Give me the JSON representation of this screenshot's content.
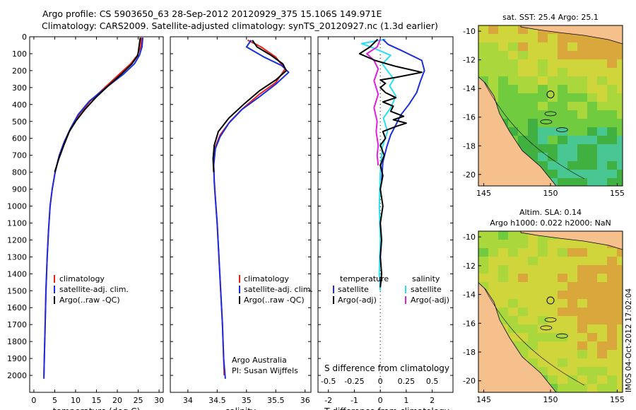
{
  "header": {
    "line1": "Argo profile: CS 5903650_63 28-Sep-2012 20120929_375 15.106S 149.971E",
    "line2": "Climatology: CARS2009. Satellite-adjusted climatology: synTS_20120927.nc (1.3d earlier)"
  },
  "colors": {
    "clim": "#e8201c",
    "sat": "#1a2ee0",
    "argo": "#000000",
    "sat_s": "#27e0f0",
    "argo_s": "#e020e0",
    "land": "#f5c08c",
    "shelf": "#3aa832"
  },
  "chart_data": [
    {
      "id": "temperature",
      "type": "line",
      "xlabel": "temperature (deg C)",
      "xlim": [
        -1,
        31
      ],
      "xticks": [
        "0",
        "5",
        "10",
        "15",
        "20",
        "25",
        "30"
      ],
      "ylim": [
        0,
        2100
      ],
      "yticks": [
        "0",
        "100",
        "200",
        "300",
        "400",
        "500",
        "600",
        "700",
        "800",
        "900",
        "1000",
        "1100",
        "1200",
        "1300",
        "1400",
        "1500",
        "1600",
        "1700",
        "1800",
        "1900",
        "2000"
      ],
      "legend": [
        "climatology",
        "satellite-adj. clim.",
        "Argo(..raw -QC)"
      ],
      "series": [
        {
          "name": "climatology",
          "color": "#e8201c",
          "points": [
            [
              25.8,
              5
            ],
            [
              25.6,
              60
            ],
            [
              24.8,
              110
            ],
            [
              23.2,
              160
            ],
            [
              20.5,
              220
            ],
            [
              17,
              300
            ],
            [
              13.5,
              380
            ],
            [
              10.8,
              460
            ],
            [
              8.9,
              540
            ],
            [
              7.3,
              620
            ],
            [
              6.1,
              700
            ],
            [
              5.1,
              800
            ],
            [
              4.4,
              900
            ],
            [
              3.9,
              1000
            ],
            [
              3.5,
              1150
            ],
            [
              3.2,
              1300
            ],
            [
              2.9,
              1500
            ],
            [
              2.7,
              1700
            ],
            [
              2.5,
              1900
            ],
            [
              2.4,
              2000
            ]
          ]
        },
        {
          "name": "satellite-adj. clim.",
          "color": "#1a2ee0",
          "points": [
            [
              26.1,
              5
            ],
            [
              25.9,
              60
            ],
            [
              25.3,
              110
            ],
            [
              24.1,
              160
            ],
            [
              21.5,
              220
            ],
            [
              17.3,
              300
            ],
            [
              13.3,
              380
            ],
            [
              10.6,
              460
            ],
            [
              8.8,
              540
            ],
            [
              7.3,
              620
            ],
            [
              6.1,
              700
            ],
            [
              5.1,
              800
            ],
            [
              4.4,
              900
            ],
            [
              3.9,
              1000
            ],
            [
              3.5,
              1150
            ],
            [
              3.2,
              1300
            ],
            [
              2.9,
              1500
            ],
            [
              2.7,
              1700
            ],
            [
              2.5,
              1900
            ],
            [
              2.4,
              2020
            ]
          ]
        },
        {
          "name": "Argo(..raw -QC)",
          "color": "#000000",
          "points": [
            [
              25.5,
              5
            ],
            [
              25.2,
              60
            ],
            [
              24.9,
              110
            ],
            [
              23.5,
              160
            ],
            [
              21,
              220
            ],
            [
              17.8,
              290
            ],
            [
              14.8,
              360
            ],
            [
              12.2,
              430
            ],
            [
              10,
              500
            ],
            [
              8.5,
              560
            ],
            [
              7.2,
              640
            ],
            [
              6,
              720
            ],
            [
              5,
              800
            ]
          ]
        }
      ]
    },
    {
      "id": "salinity",
      "type": "line",
      "xlabel": "salinity",
      "xlim": [
        33.7,
        36.1
      ],
      "xticks": [
        "34",
        "34.5",
        "35",
        "35.5",
        "36"
      ],
      "ylim": [
        0,
        2100
      ],
      "legend": [
        "climatology",
        "satellite-adj. clim.",
        "Argo(..raw -QC)"
      ],
      "annotation": [
        "Argo Australia",
        "PI: Susan Wijffels"
      ],
      "series": [
        {
          "name": "climatology",
          "color": "#e8201c",
          "points": [
            [
              35.02,
              20
            ],
            [
              35.25,
              60
            ],
            [
              35.5,
              120
            ],
            [
              35.66,
              190
            ],
            [
              35.5,
              270
            ],
            [
              35.22,
              340
            ],
            [
              34.95,
              420
            ],
            [
              34.72,
              500
            ],
            [
              34.55,
              580
            ],
            [
              34.47,
              650
            ],
            [
              34.44,
              750
            ],
            [
              34.45,
              850
            ],
            [
              34.47,
              950
            ],
            [
              34.5,
              1100
            ],
            [
              34.53,
              1300
            ],
            [
              34.56,
              1500
            ],
            [
              34.59,
              1700
            ],
            [
              34.61,
              1900
            ],
            [
              34.62,
              2000
            ]
          ]
        },
        {
          "name": "satellite-adj. clim.",
          "color": "#1a2ee0",
          "points": [
            [
              35.08,
              20
            ],
            [
              35.0,
              60
            ],
            [
              35.3,
              120
            ],
            [
              35.6,
              170
            ],
            [
              35.72,
              210
            ],
            [
              35.5,
              280
            ],
            [
              35.2,
              360
            ],
            [
              34.92,
              430
            ],
            [
              34.7,
              510
            ],
            [
              34.55,
              590
            ],
            [
              34.47,
              660
            ],
            [
              34.44,
              760
            ],
            [
              34.45,
              860
            ],
            [
              34.47,
              960
            ],
            [
              34.5,
              1100
            ],
            [
              34.53,
              1300
            ],
            [
              34.56,
              1500
            ],
            [
              34.59,
              1700
            ],
            [
              34.61,
              1900
            ],
            [
              34.64,
              2020
            ]
          ]
        },
        {
          "name": "Argo(..raw -QC)",
          "color": "#000000",
          "points": [
            [
              35.1,
              20
            ],
            [
              35.18,
              60
            ],
            [
              35.42,
              110
            ],
            [
              35.62,
              160
            ],
            [
              35.68,
              200
            ],
            [
              35.5,
              255
            ],
            [
              35.22,
              320
            ],
            [
              34.95,
              400
            ],
            [
              34.7,
              480
            ],
            [
              34.52,
              560
            ],
            [
              34.45,
              640
            ],
            [
              34.43,
              720
            ],
            [
              34.44,
              800
            ]
          ]
        }
      ]
    },
    {
      "id": "difference",
      "type": "line",
      "xlabel": "T difference from climatology",
      "xlabel_top": "S difference from climatology",
      "xlim": [
        -2.4,
        2.8
      ],
      "xticks_t": [
        "-2",
        "-1",
        "0",
        "1",
        "2"
      ],
      "xticks_s": [
        "-0.5",
        "-0.25",
        "0",
        "0.25",
        "0.5"
      ],
      "ylim": [
        0,
        2100
      ],
      "legend_t": [
        "temperature",
        "satellite",
        "Argo(-adj)"
      ],
      "legend_s": [
        "salinity",
        "satellite",
        "Argo(-adj)"
      ],
      "series": [
        {
          "name": "T satellite",
          "color": "#1a2ee0",
          "points": [
            [
              0.1,
              15
            ],
            [
              0.3,
              45
            ],
            [
              0.8,
              80
            ],
            [
              1.6,
              140
            ],
            [
              1.7,
              200
            ],
            [
              1.55,
              260
            ],
            [
              1.4,
              330
            ],
            [
              1.1,
              400
            ],
            [
              0.8,
              460
            ],
            [
              0.6,
              520
            ],
            [
              0.4,
              580
            ],
            [
              0.25,
              650
            ],
            [
              0.1,
              740
            ],
            [
              0.05,
              850
            ]
          ]
        },
        {
          "name": "T Argo(-adj)",
          "color": "#000000",
          "points": [
            [
              -0.1,
              15
            ],
            [
              -0.4,
              60
            ],
            [
              -0.8,
              100
            ],
            [
              -0.2,
              140
            ],
            [
              0.6,
              175
            ],
            [
              1.6,
              210
            ],
            [
              0.6,
              240
            ],
            [
              0,
              255
            ],
            [
              0.2,
              275
            ],
            [
              0,
              300
            ],
            [
              0.2,
              330
            ],
            [
              0.6,
              360
            ],
            [
              0.1,
              385
            ],
            [
              0.5,
              410
            ],
            [
              0.4,
              440
            ],
            [
              0.9,
              470
            ],
            [
              0.5,
              490
            ],
            [
              1.0,
              510
            ],
            [
              0.6,
              530
            ],
            [
              0.1,
              560
            ],
            [
              0.2,
              600
            ],
            [
              0,
              640
            ],
            [
              0.15,
              700
            ],
            [
              0,
              760
            ],
            [
              0.1,
              820
            ],
            [
              0,
              900
            ],
            [
              0.1,
              1000
            ],
            [
              0,
              1100
            ],
            [
              0.05,
              1200
            ],
            [
              0,
              1300
            ],
            [
              0.05,
              1400
            ],
            [
              0,
              1480
            ]
          ]
        },
        {
          "name": "S satellite",
          "color": "#27e0f0",
          "points": [
            [
              0.05,
              15
            ],
            [
              -0.18,
              40
            ],
            [
              -0.05,
              70
            ],
            [
              0.1,
              110
            ],
            [
              0.02,
              160
            ],
            [
              0.08,
              210
            ],
            [
              0.13,
              250
            ],
            [
              0.09,
              290
            ],
            [
              0.15,
              350
            ],
            [
              0.1,
              420
            ],
            [
              0.03,
              480
            ],
            [
              0.07,
              560
            ],
            [
              0.02,
              650
            ],
            [
              0,
              800
            ],
            [
              -0.01,
              1000
            ],
            [
              0,
              1200
            ],
            [
              -0.01,
              1400
            ],
            [
              0,
              1500
            ]
          ]
        },
        {
          "name": "S Argo(-adj)",
          "color": "#e020e0",
          "points": [
            [
              0,
              15
            ],
            [
              -0.03,
              60
            ],
            [
              -0.13,
              100
            ],
            [
              -0.06,
              140
            ],
            [
              -0.02,
              190
            ],
            [
              -0.06,
              260
            ],
            [
              -0.02,
              340
            ],
            [
              -0.06,
              420
            ],
            [
              -0.03,
              500
            ],
            [
              -0.04,
              560
            ],
            [
              -0.02,
              640
            ],
            [
              -0.03,
              700
            ],
            [
              -0.02,
              760
            ]
          ]
        }
      ]
    }
  ],
  "maps": [
    {
      "title_lines": [
        "sat. SST: 25.4 Argo: 25.1"
      ],
      "xticks": [
        "145",
        "150",
        "155"
      ],
      "yticks": [
        "-10",
        "-12",
        "-14",
        "-16",
        "-18",
        "-20"
      ]
    },
    {
      "title_lines": [
        "Altim. SLA: 0.14",
        "Argo h1000: 0.022 h2000: NaN"
      ],
      "xticks": [
        "145",
        "150",
        "155"
      ],
      "yticks": [
        "-10",
        "-12",
        "-14",
        "-16",
        "-18",
        "-20"
      ]
    }
  ],
  "side_label": "IMOS 04-Oct-2012 17:02:04"
}
